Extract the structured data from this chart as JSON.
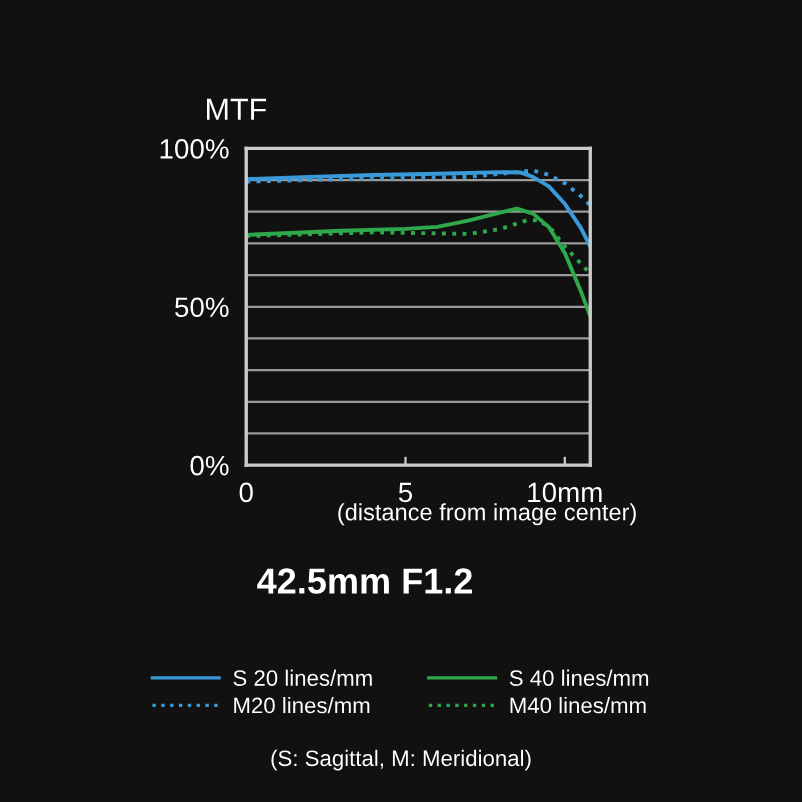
{
  "chart_data": {
    "type": "line",
    "title": "42.5mm F1.2",
    "ylabel": "MTF",
    "xlabel": "(distance from image center)",
    "xlim": [
      0,
      10.8
    ],
    "xticks": [
      0,
      5,
      {
        "value": 10,
        "label": "10mm"
      }
    ],
    "ylim": [
      0,
      100
    ],
    "yticks": [
      {
        "value": 0,
        "label": "0%"
      },
      {
        "value": 10,
        "label": null
      },
      {
        "value": 20,
        "label": null
      },
      {
        "value": 30,
        "label": null
      },
      {
        "value": 40,
        "label": null
      },
      {
        "value": 50,
        "label": "50%"
      },
      {
        "value": 60,
        "label": null
      },
      {
        "value": 70,
        "label": null
      },
      {
        "value": 80,
        "label": null
      },
      {
        "value": 90,
        "label": null
      },
      {
        "value": 100,
        "label": "100%"
      }
    ],
    "grid": "y",
    "legend": "bottom",
    "marker": "none",
    "annotations": [
      "(S: Sagittal, M: Meridional)"
    ],
    "series": [
      {
        "name": "S 20 lines/mm",
        "color": "#3a9ad9",
        "line_style": "solid",
        "x": [
          0,
          2,
          4,
          6,
          8,
          8.6,
          9,
          9.5,
          10,
          10.5,
          10.8
        ],
        "values": [
          90.3,
          91,
          91.6,
          92,
          92.5,
          92.4,
          91,
          88,
          82.5,
          75,
          69
        ]
      },
      {
        "name": "M20 lines/mm",
        "color": "#3a9ad9",
        "line_style": "dotted",
        "x": [
          0,
          4,
          7,
          8.5,
          9,
          9.5,
          10,
          10.5,
          10.8
        ],
        "values": [
          89.5,
          90.5,
          91,
          92.5,
          93,
          91.6,
          89,
          85,
          82
        ]
      },
      {
        "name": "S 40 lines/mm",
        "color": "#2ea84a",
        "line_style": "solid",
        "x": [
          0,
          3,
          5,
          6,
          7,
          8,
          8.5,
          9,
          9.5,
          10,
          10.5,
          10.8
        ],
        "values": [
          72.7,
          74,
          74.6,
          75.2,
          77.3,
          79.8,
          81,
          79.4,
          75.2,
          67,
          55,
          47
        ]
      },
      {
        "name": "M40 lines/mm",
        "color": "#2ea84a",
        "line_style": "dotted",
        "x": [
          0,
          4,
          7,
          8,
          8.8,
          9.2,
          9.6,
          10,
          10.5,
          10.8
        ],
        "values": [
          72.3,
          73.5,
          73,
          74.6,
          77.3,
          77.3,
          74.2,
          69,
          63.7,
          60.5
        ]
      }
    ]
  }
}
